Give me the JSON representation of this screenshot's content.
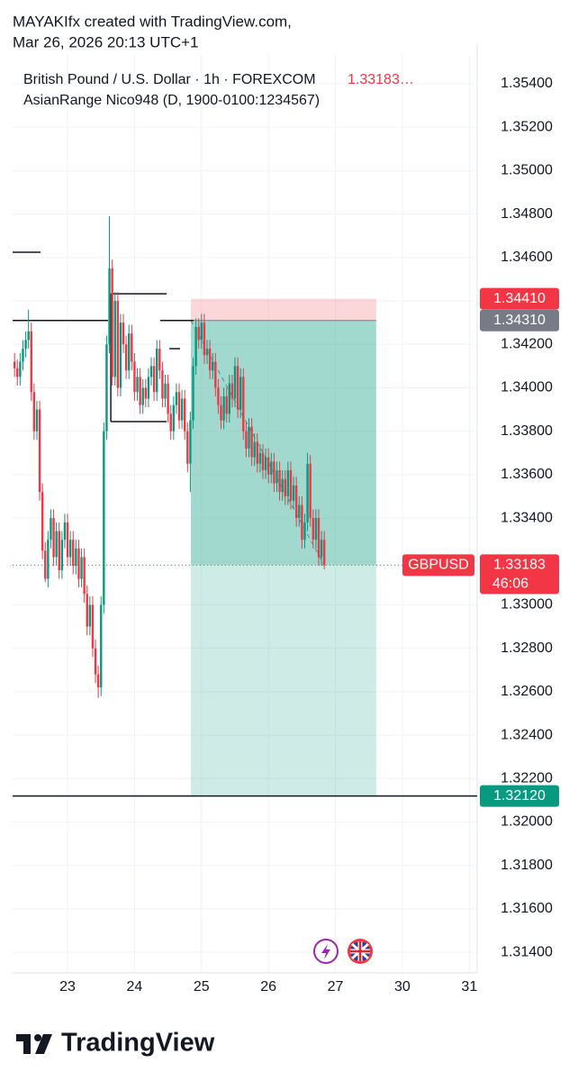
{
  "header": {
    "line1": "MAYAKIfx created with TradingView.com,",
    "line2": "Mar 26, 2026 20:13 UTC+1"
  },
  "footer": {
    "brand": "TradingView"
  },
  "chart_data": {
    "type": "candlestick",
    "title": "British Pound / U.S. Dollar · 1h · FOREXCOM",
    "price_text": "1.33183…",
    "indicator": "AsianRange Nico948 (D, 1900-0100:1234567)",
    "symbol": "GBPUSD",
    "countdown": "46:06",
    "up_color": "#089981",
    "down_color": "#f23645",
    "grid": true,
    "xlim": [
      -19.7,
      146.8
    ],
    "ylim": [
      1.31305,
      1.35537
    ],
    "xticks": [
      {
        "value": 0,
        "label": "23"
      },
      {
        "value": 24,
        "label": "24"
      },
      {
        "value": 48,
        "label": "25"
      },
      {
        "value": 72,
        "label": "26"
      },
      {
        "value": 96,
        "label": "27"
      },
      {
        "value": 120,
        "label": "30"
      },
      {
        "value": 144,
        "label": "31"
      }
    ],
    "yticks": [
      {
        "value": 1.314,
        "label": "1.31400"
      },
      {
        "value": 1.316,
        "label": "1.31600"
      },
      {
        "value": 1.318,
        "label": "1.31800"
      },
      {
        "value": 1.32,
        "label": "1.32000"
      },
      {
        "value": 1.322,
        "label": "1.32200"
      },
      {
        "value": 1.324,
        "label": "1.32400"
      },
      {
        "value": 1.326,
        "label": "1.32600"
      },
      {
        "value": 1.328,
        "label": "1.32800"
      },
      {
        "value": 1.33,
        "label": "1.33000"
      },
      {
        "value": 1.332,
        "label": "1.33200"
      },
      {
        "value": 1.334,
        "label": "1.33400"
      },
      {
        "value": 1.336,
        "label": "1.33600"
      },
      {
        "value": 1.338,
        "label": "1.33800"
      },
      {
        "value": 1.34,
        "label": "1.34000"
      },
      {
        "value": 1.342,
        "label": "1.34200"
      },
      {
        "value": 1.344,
        "label": "1.34400"
      },
      {
        "value": 1.346,
        "label": "1.34600"
      },
      {
        "value": 1.348,
        "label": "1.34800"
      },
      {
        "value": 1.35,
        "label": "1.35000"
      },
      {
        "value": 1.352,
        "label": "1.35200"
      },
      {
        "value": 1.354,
        "label": "1.35400"
      }
    ],
    "x": [
      -19,
      -18,
      -17,
      -16,
      -15,
      -14,
      -13,
      -12,
      -11,
      -10,
      -9,
      -8,
      -7,
      -6,
      -5,
      -4,
      -3,
      -2,
      -1,
      0,
      1,
      2,
      3,
      4,
      5,
      6,
      7,
      8,
      9,
      10,
      11,
      12,
      13,
      14,
      15,
      16,
      17,
      18,
      19,
      20,
      21,
      22,
      23,
      24,
      25,
      26,
      27,
      28,
      29,
      30,
      31,
      32,
      33,
      34,
      35,
      36,
      37,
      38,
      39,
      40,
      41,
      42,
      43,
      44,
      45,
      46,
      47,
      48,
      49,
      50,
      51,
      52,
      53,
      54,
      55,
      56,
      57,
      58,
      59,
      60,
      61,
      62,
      63,
      64,
      65,
      66,
      67,
      68,
      69,
      70,
      71,
      72,
      73,
      74,
      75,
      76,
      77,
      78,
      79,
      80,
      81,
      82,
      83,
      84,
      85,
      86,
      87,
      88,
      89,
      90,
      91,
      92
    ],
    "open": [
      1.3412,
      1.3409,
      1.3405,
      1.3412,
      1.3418,
      1.3422,
      1.3426,
      1.3398,
      1.338,
      1.339,
      1.3352,
      1.3325,
      1.3312,
      1.333,
      1.334,
      1.3322,
      1.3334,
      1.3316,
      1.333,
      1.3338,
      1.3322,
      1.333,
      1.3318,
      1.3326,
      1.3312,
      1.3322,
      1.3305,
      1.329,
      1.33,
      1.328,
      1.3268,
      1.3262,
      1.33,
      1.338,
      1.342,
      1.3455,
      1.3405,
      1.344,
      1.34,
      1.343,
      1.342,
      1.3408,
      1.3425,
      1.3412,
      1.3398,
      1.3405,
      1.3392,
      1.34,
      1.3395,
      1.3405,
      1.341,
      1.3398,
      1.3418,
      1.3408,
      1.3395,
      1.3402,
      1.3388,
      1.338,
      1.3392,
      1.3398,
      1.3385,
      1.3395,
      1.338,
      1.3365,
      1.3385,
      1.341,
      1.3428,
      1.3422,
      1.343,
      1.3415,
      1.3418,
      1.3408,
      1.3412,
      1.34,
      1.3392,
      1.3385,
      1.3396,
      1.3388,
      1.3402,
      1.3395,
      1.341,
      1.339,
      1.3405,
      1.338,
      1.3372,
      1.3382,
      1.3368,
      1.3375,
      1.3365,
      1.337,
      1.3362,
      1.3368,
      1.336,
      1.3366,
      1.3356,
      1.3362,
      1.3352,
      1.3358,
      1.335,
      1.3362,
      1.3348,
      1.3355,
      1.334,
      1.3346,
      1.333,
      1.3338,
      1.3365,
      1.334,
      1.333,
      1.334,
      1.3322,
      1.333
    ],
    "high": [
      1.3416,
      1.3413,
      1.3416,
      1.3422,
      1.3426,
      1.3436,
      1.343,
      1.3402,
      1.3394,
      1.3394,
      1.3356,
      1.3329,
      1.3334,
      1.3344,
      1.3344,
      1.3338,
      1.3338,
      1.3334,
      1.3342,
      1.3342,
      1.3334,
      1.3334,
      1.333,
      1.333,
      1.3326,
      1.3326,
      1.3309,
      1.3304,
      1.3304,
      1.3284,
      1.3272,
      1.3304,
      1.3384,
      1.3424,
      1.3479,
      1.3459,
      1.3444,
      1.3444,
      1.3434,
      1.3434,
      1.3424,
      1.3429,
      1.3429,
      1.3416,
      1.3409,
      1.3409,
      1.3404,
      1.3404,
      1.3409,
      1.3414,
      1.3414,
      1.3422,
      1.3422,
      1.3412,
      1.3406,
      1.3406,
      1.3392,
      1.3396,
      1.3402,
      1.3402,
      1.3399,
      1.3399,
      1.3384,
      1.3389,
      1.3414,
      1.3432,
      1.3432,
      1.3434,
      1.3434,
      1.3422,
      1.3422,
      1.3416,
      1.3416,
      1.3404,
      1.3396,
      1.34,
      1.34,
      1.3406,
      1.3406,
      1.3414,
      1.3414,
      1.3409,
      1.3409,
      1.3384,
      1.3386,
      1.3386,
      1.3379,
      1.3379,
      1.3374,
      1.3374,
      1.3372,
      1.3372,
      1.337,
      1.337,
      1.3366,
      1.3366,
      1.3362,
      1.3362,
      1.3366,
      1.3366,
      1.3359,
      1.3359,
      1.335,
      1.335,
      1.3342,
      1.337,
      1.3369,
      1.3344,
      1.3344,
      1.3344,
      1.3334,
      1.3334
    ],
    "low": [
      1.3405,
      1.3401,
      1.3401,
      1.3408,
      1.3414,
      1.3418,
      1.3394,
      1.3376,
      1.3376,
      1.3348,
      1.3321,
      1.33105,
      1.3308,
      1.3326,
      1.3318,
      1.3318,
      1.3312,
      1.3312,
      1.3326,
      1.3318,
      1.3318,
      1.3314,
      1.3314,
      1.3308,
      1.3308,
      1.3301,
      1.3286,
      1.3286,
      1.3276,
      1.3264,
      1.32571,
      1.3258,
      1.3296,
      1.3376,
      1.3416,
      1.3401,
      1.3401,
      1.3396,
      1.3396,
      1.3416,
      1.3404,
      1.3404,
      1.3408,
      1.3394,
      1.3394,
      1.3388,
      1.3388,
      1.3391,
      1.3391,
      1.3401,
      1.3394,
      1.3394,
      1.3404,
      1.3391,
      1.3391,
      1.3384,
      1.3376,
      1.3376,
      1.3388,
      1.3381,
      1.3381,
      1.3376,
      1.3361,
      1.3352,
      1.3381,
      1.3406,
      1.3418,
      1.3418,
      1.3411,
      1.3411,
      1.3404,
      1.3404,
      1.3396,
      1.3388,
      1.3381,
      1.3381,
      1.3384,
      1.3384,
      1.3391,
      1.3391,
      1.3386,
      1.3386,
      1.3376,
      1.3368,
      1.3368,
      1.3364,
      1.3364,
      1.3361,
      1.3361,
      1.3358,
      1.3358,
      1.3356,
      1.3356,
      1.3352,
      1.3352,
      1.3348,
      1.3348,
      1.3346,
      1.3346,
      1.3344,
      1.3344,
      1.3336,
      1.3336,
      1.3326,
      1.3326,
      1.3334,
      1.3336,
      1.3326,
      1.3326,
      1.3318,
      1.3318,
      1.33163
    ],
    "close": [
      1.3409,
      1.3405,
      1.3412,
      1.3418,
      1.3422,
      1.3426,
      1.3398,
      1.338,
      1.339,
      1.3352,
      1.3325,
      1.3312,
      1.333,
      1.334,
      1.3322,
      1.3334,
      1.3316,
      1.333,
      1.3338,
      1.3322,
      1.333,
      1.3318,
      1.3326,
      1.3312,
      1.3322,
      1.3305,
      1.329,
      1.33,
      1.328,
      1.3268,
      1.3262,
      1.33,
      1.338,
      1.342,
      1.3455,
      1.3405,
      1.344,
      1.34,
      1.343,
      1.342,
      1.3408,
      1.3425,
      1.3412,
      1.3398,
      1.3405,
      1.3392,
      1.34,
      1.3395,
      1.3405,
      1.341,
      1.3398,
      1.3418,
      1.3408,
      1.3395,
      1.3402,
      1.3388,
      1.338,
      1.3392,
      1.3398,
      1.3385,
      1.3395,
      1.338,
      1.3365,
      1.3385,
      1.341,
      1.3428,
      1.3422,
      1.343,
      1.3415,
      1.3418,
      1.3408,
      1.3412,
      1.34,
      1.3392,
      1.3385,
      1.3396,
      1.3388,
      1.3402,
      1.3395,
      1.341,
      1.339,
      1.3405,
      1.338,
      1.3372,
      1.3382,
      1.3368,
      1.3375,
      1.3365,
      1.337,
      1.3362,
      1.3368,
      1.336,
      1.3366,
      1.3356,
      1.3362,
      1.3352,
      1.3358,
      1.335,
      1.3362,
      1.3348,
      1.3355,
      1.334,
      1.3346,
      1.333,
      1.3338,
      1.3365,
      1.334,
      1.333,
      1.334,
      1.3322,
      1.333,
      1.33183
    ],
    "position": {
      "x": [
        44.2,
        110.6
      ],
      "stop": {
        "value": 1.3441,
        "label": "1.34410"
      },
      "entry": {
        "value": 1.3431,
        "label": "1.34310"
      },
      "target": {
        "value": 1.3212,
        "label": "1.32120"
      }
    },
    "asian_range": [
      {
        "x": [
          -19.7,
          -9.7
        ],
        "high": 1.34624
      },
      {
        "x": [
          -19.7,
          14.5
        ],
        "high": 1.3431
      },
      {
        "x": [
          15.5,
          35.5
        ],
        "high": 1.34433,
        "low": 1.33844
      },
      {
        "x": [
          33.2,
          45.2
        ],
        "high": 1.3431
      },
      {
        "x": [
          36.5,
          40.3
        ],
        "high": 1.3418
      }
    ]
  }
}
